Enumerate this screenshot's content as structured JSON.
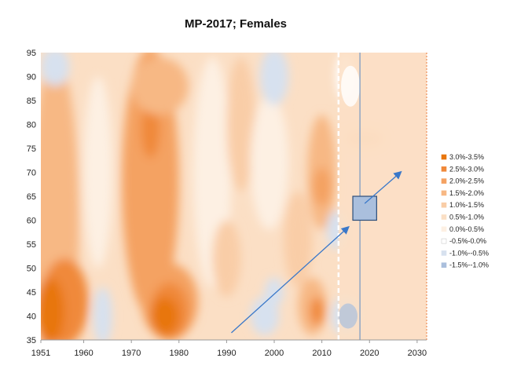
{
  "chart_data": {
    "type": "heatmap",
    "title": "MP-2017; Females",
    "x_axis": {
      "range": [
        1951,
        2032
      ],
      "ticks": [
        1951,
        1960,
        1970,
        1980,
        1990,
        2000,
        2010,
        2020,
        2030
      ]
    },
    "y_axis": {
      "range": [
        35,
        95
      ],
      "ticks": [
        35,
        40,
        45,
        50,
        55,
        60,
        65,
        70,
        75,
        80,
        85,
        90,
        95
      ]
    },
    "legend": {
      "placement": "right",
      "entries": [
        {
          "label": "3.0%-3.5%",
          "color": "#e8760e"
        },
        {
          "label": "2.5%-3.0%",
          "color": "#f0893a"
        },
        {
          "label": "2.0%-2.5%",
          "color": "#f4a262"
        },
        {
          "label": "1.5%-2.0%",
          "color": "#f7b884"
        },
        {
          "label": "1.0%-1.5%",
          "color": "#f9cda7"
        },
        {
          "label": "0.5%-1.0%",
          "color": "#fbdfc5"
        },
        {
          "label": "0.0%-0.5%",
          "color": "#fdf0e3"
        },
        {
          "label": "-0.5%-0.0%",
          "color": "#ffffff"
        },
        {
          "label": "-1.0%--0.5%",
          "color": "#d7e1ef"
        },
        {
          "label": "-1.5%--1.0%",
          "color": "#aabfdd"
        }
      ]
    },
    "annotations": {
      "dashed_line_year": 2013.5,
      "solid_line_year": 2018,
      "box": {
        "x": [
          2016.5,
          2021.5
        ],
        "y": [
          60,
          65
        ]
      },
      "arrows": [
        {
          "from": [
            1991,
            36.5
          ],
          "to": [
            2015.5,
            58.5
          ]
        },
        {
          "from": [
            2019,
            63.5
          ],
          "to": [
            2026.5,
            70
          ]
        }
      ]
    }
  }
}
